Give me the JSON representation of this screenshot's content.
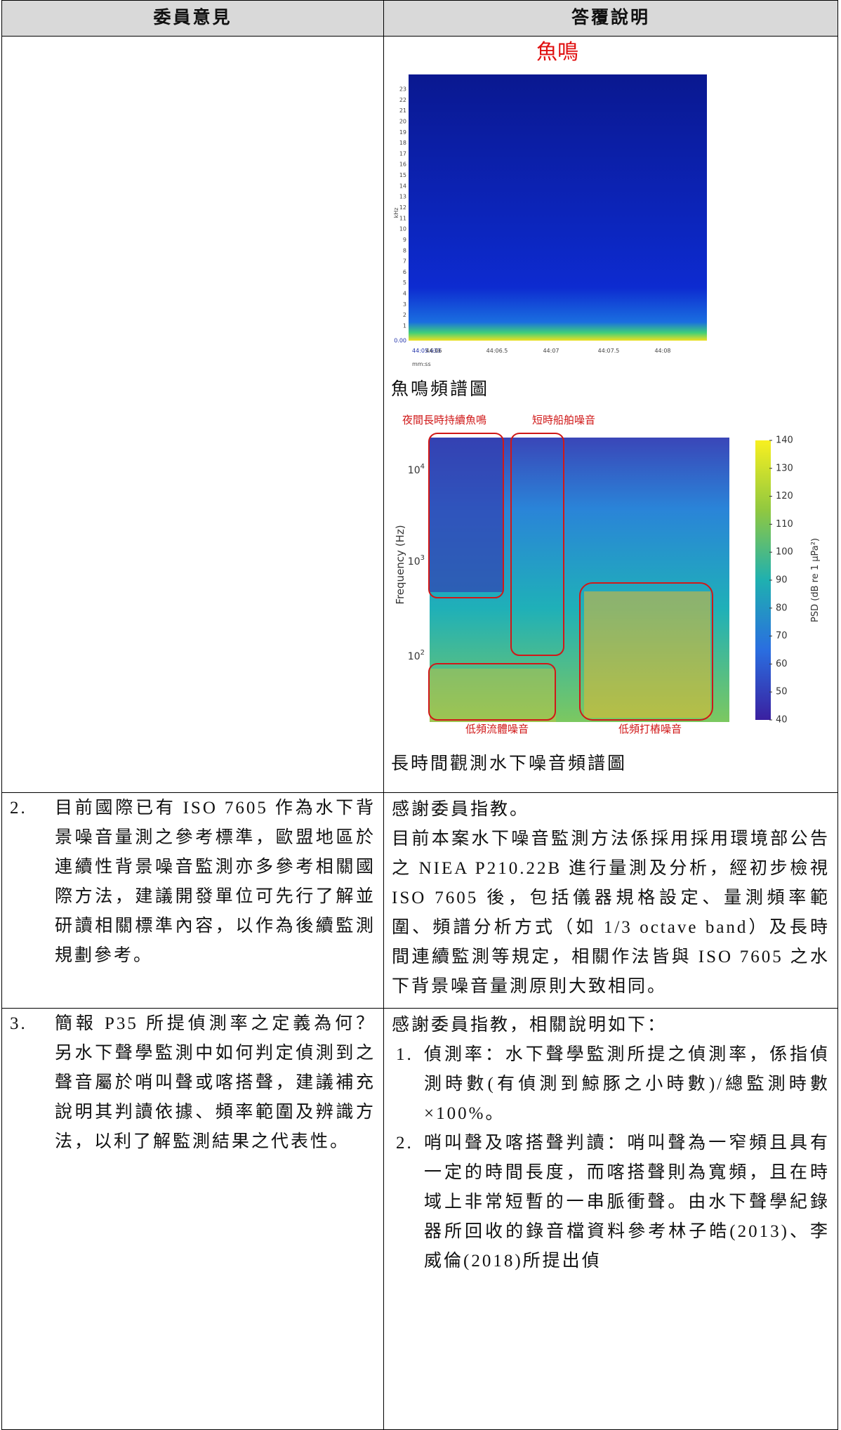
{
  "header": {
    "col1": "委員意見",
    "col2": "答覆說明"
  },
  "rows": [
    {
      "figures": [
        {
          "title": "魚鳴",
          "ylabel": "kHz",
          "yticks": [
            "23",
            "22",
            "21",
            "20",
            "19",
            "18",
            "17",
            "16",
            "15",
            "14",
            "13",
            "12",
            "11",
            "10",
            "9",
            "8",
            "7",
            "6",
            "5",
            "4",
            "3",
            "2",
            "1"
          ],
          "yzero": "0.00",
          "xticks": [
            "44:05.633",
            "44:06",
            "44:06.5",
            "44:07",
            "44:07.5",
            "44:08"
          ],
          "xlabel": "mm:ss",
          "caption": "魚鳴頻譜圖"
        },
        {
          "annotations": [
            "夜間長時持續魚鳴",
            "短時船舶噪音",
            "低頻流體噪音",
            "低頻打樁噪音"
          ],
          "ylabel": "Frequency (Hz)",
          "yticks": [
            {
              "base": "10",
              "exp": "4"
            },
            {
              "base": "10",
              "exp": "3"
            },
            {
              "base": "10",
              "exp": "2"
            }
          ],
          "cticks": [
            140,
            130,
            120,
            110,
            100,
            90,
            80,
            70,
            60,
            50,
            40
          ],
          "clabel": "PSD (dB re 1 μPa²)",
          "caption": "長時間觀測水下噪音頻譜圖"
        }
      ]
    },
    {
      "number": "2.",
      "comment": "目前國際已有 ISO 7605 作為水下背景噪音量測之參考標準，歐盟地區於連續性背景噪音監測亦多參考相關國際方法，建議開發單位可先行了解並研讀相關標準內容，以作為後續監測規劃參考。",
      "reply": [
        "感謝委員指教。",
        "目前本案水下噪音監測方法係採用採用環境部公告之 NIEA P210.22B 進行量測及分析，經初步檢視 ISO 7605 後，包括儀器規格設定、量測頻率範圍、頻譜分析方式（如 1/3 octave band）及長時間連續監測等規定，相關作法皆與 ISO 7605 之水下背景噪音量測原則大致相同。"
      ]
    },
    {
      "number": "3.",
      "comment": "簡報 P35 所提偵測率之定義為何？另水下聲學監測中如何判定偵測到之聲音屬於哨叫聲或喀搭聲，建議補充說明其判讀依據、頻率範圍及辨識方法，以利了解監測結果之代表性。",
      "reply": {
        "intro": "感謝委員指教，相關說明如下：",
        "items": [
          {
            "number": "1.",
            "text": "偵測率：水下聲學監測所提之偵測率，係指偵測時數(有偵測到鯨豚之小時數)/總監測時數×100%。"
          },
          {
            "number": "2.",
            "text": "哨叫聲及喀搭聲判讀：哨叫聲為一窄頻且具有一定的時間長度，而喀搭聲則為寬頻，且在時域上非常短暫的一串脈衝聲。由水下聲學紀錄器所回收的錄音檔資料參考林子皓(2013)、李威倫(2018)所提出偵"
          }
        ]
      }
    }
  ]
}
